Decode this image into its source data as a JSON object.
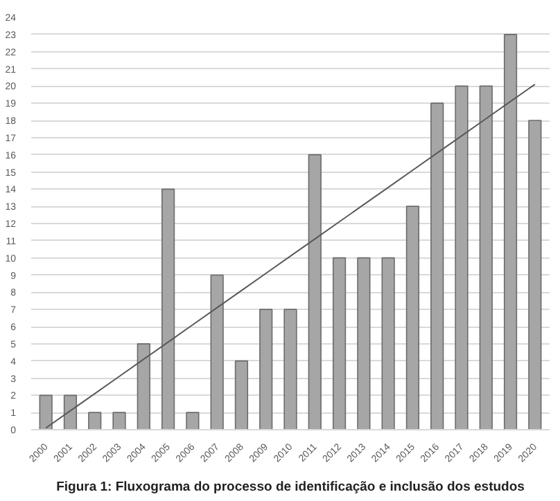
{
  "chart_data": {
    "type": "bar",
    "annotations": [
      "Figura 1: Fluxograma do processo de identificação e inclusão dos estudos"
    ],
    "categories": [
      "2000",
      "2001",
      "2002",
      "2003",
      "2004",
      "2005",
      "2006",
      "2007",
      "2008",
      "2009",
      "2010",
      "2011",
      "2012",
      "2013",
      "2014",
      "2015",
      "2016",
      "2017",
      "2018",
      "2019",
      "2020"
    ],
    "series": [
      {
        "color": "#a6a6a6",
        "values": [
          2,
          2,
          1,
          1,
          5,
          14,
          1,
          9,
          4,
          7,
          7,
          16,
          10,
          10,
          10,
          13,
          19,
          20,
          20,
          23,
          18
        ]
      },
      {
        "type": "line",
        "color": "#595959",
        "values": [
          0.1,
          1.1,
          2.1,
          3.1,
          4.1,
          5.1,
          6.1,
          7.1,
          8.1,
          9.1,
          10.1,
          11.1,
          12.1,
          13.1,
          14.1,
          15.1,
          16.1,
          17.1,
          18.1,
          19.1,
          20.1
        ]
      }
    ],
    "ylim": [
      0,
      24
    ],
    "yticks": [
      0,
      1,
      2,
      3,
      4,
      5,
      6,
      7,
      8,
      9,
      10,
      11,
      12,
      13,
      14,
      15,
      16,
      17,
      18,
      19,
      20,
      21,
      22,
      23,
      24
    ],
    "grid": "y"
  }
}
